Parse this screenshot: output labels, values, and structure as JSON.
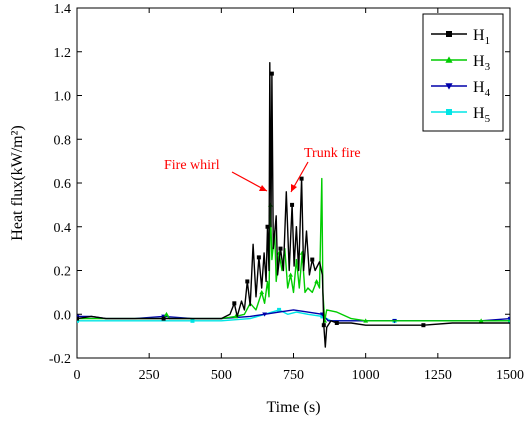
{
  "chart_data": {
    "type": "line",
    "xlabel": "Time (s)",
    "ylabel": "Heat flux(kW/m²)",
    "xlim": [
      0,
      1500
    ],
    "ylim": [
      -0.2,
      1.4
    ],
    "xticks": [
      0,
      250,
      500,
      750,
      1000,
      1250,
      1500
    ],
    "yticks": [
      -0.2,
      0.0,
      0.2,
      0.4,
      0.6,
      0.8,
      1.0,
      1.2,
      1.4
    ],
    "grid": false,
    "legend_position": "top-right",
    "series": [
      {
        "name": "H1",
        "color": "#000000",
        "marker": "square",
        "points": [
          [
            0,
            -0.02
          ],
          [
            50,
            -0.01
          ],
          [
            100,
            -0.02
          ],
          [
            200,
            -0.02
          ],
          [
            300,
            -0.02
          ],
          [
            400,
            -0.02
          ],
          [
            500,
            -0.02
          ],
          [
            530,
            0.0
          ],
          [
            545,
            0.05
          ],
          [
            555,
            -0.01
          ],
          [
            570,
            0.06
          ],
          [
            580,
            0.02
          ],
          [
            590,
            0.15
          ],
          [
            600,
            0.04
          ],
          [
            610,
            0.32
          ],
          [
            620,
            0.08
          ],
          [
            630,
            0.26
          ],
          [
            640,
            0.12
          ],
          [
            648,
            0.28
          ],
          [
            655,
            0.15
          ],
          [
            660,
            0.4
          ],
          [
            665,
            0.2
          ],
          [
            668,
            1.15
          ],
          [
            672,
            0.4
          ],
          [
            675,
            1.1
          ],
          [
            680,
            0.3
          ],
          [
            690,
            0.45
          ],
          [
            695,
            0.18
          ],
          [
            705,
            0.3
          ],
          [
            715,
            0.2
          ],
          [
            725,
            0.56
          ],
          [
            735,
            0.2
          ],
          [
            745,
            0.5
          ],
          [
            752,
            0.22
          ],
          [
            760,
            0.4
          ],
          [
            768,
            0.2
          ],
          [
            778,
            0.62
          ],
          [
            785,
            0.2
          ],
          [
            795,
            0.38
          ],
          [
            805,
            0.18
          ],
          [
            815,
            0.25
          ],
          [
            825,
            0.2
          ],
          [
            840,
            0.24
          ],
          [
            850,
            0.18
          ],
          [
            855,
            -0.05
          ],
          [
            860,
            -0.15
          ],
          [
            865,
            -0.06
          ],
          [
            880,
            -0.03
          ],
          [
            900,
            -0.04
          ],
          [
            950,
            -0.04
          ],
          [
            1000,
            -0.05
          ],
          [
            1100,
            -0.05
          ],
          [
            1200,
            -0.05
          ],
          [
            1300,
            -0.04
          ],
          [
            1400,
            -0.04
          ],
          [
            1500,
            -0.04
          ]
        ]
      },
      {
        "name": "H3",
        "color": "#00cc00",
        "marker": "triangle-up",
        "points": [
          [
            0,
            -0.02
          ],
          [
            100,
            -0.02
          ],
          [
            200,
            -0.02
          ],
          [
            300,
            -0.02
          ],
          [
            310,
            0.0
          ],
          [
            320,
            -0.02
          ],
          [
            400,
            -0.02
          ],
          [
            500,
            -0.02
          ],
          [
            550,
            -0.01
          ],
          [
            580,
            0.0
          ],
          [
            600,
            0.05
          ],
          [
            620,
            0.02
          ],
          [
            640,
            0.1
          ],
          [
            650,
            0.05
          ],
          [
            660,
            0.15
          ],
          [
            665,
            0.08
          ],
          [
            670,
            0.5
          ],
          [
            675,
            0.25
          ],
          [
            685,
            0.38
          ],
          [
            690,
            0.15
          ],
          [
            700,
            0.28
          ],
          [
            710,
            0.2
          ],
          [
            720,
            0.3
          ],
          [
            730,
            0.12
          ],
          [
            740,
            0.18
          ],
          [
            750,
            0.1
          ],
          [
            760,
            0.25
          ],
          [
            770,
            0.12
          ],
          [
            780,
            0.28
          ],
          [
            790,
            0.1
          ],
          [
            800,
            0.12
          ],
          [
            815,
            0.1
          ],
          [
            830,
            0.15
          ],
          [
            840,
            0.12
          ],
          [
            848,
            0.62
          ],
          [
            852,
            0.1
          ],
          [
            858,
            -0.03
          ],
          [
            865,
            0.02
          ],
          [
            900,
            0.01
          ],
          [
            950,
            -0.02
          ],
          [
            1000,
            -0.03
          ],
          [
            1100,
            -0.03
          ],
          [
            1200,
            -0.03
          ],
          [
            1300,
            -0.03
          ],
          [
            1400,
            -0.03
          ],
          [
            1500,
            -0.03
          ]
        ]
      },
      {
        "name": "H4",
        "color": "#0000aa",
        "marker": "triangle-down",
        "points": [
          [
            0,
            -0.01
          ],
          [
            50,
            -0.01
          ],
          [
            100,
            -0.02
          ],
          [
            200,
            -0.02
          ],
          [
            300,
            -0.01
          ],
          [
            400,
            -0.02
          ],
          [
            500,
            -0.02
          ],
          [
            600,
            -0.01
          ],
          [
            650,
            0.0
          ],
          [
            700,
            0.01
          ],
          [
            750,
            0.02
          ],
          [
            800,
            0.01
          ],
          [
            850,
            0.0
          ],
          [
            870,
            -0.03
          ],
          [
            900,
            -0.03
          ],
          [
            1000,
            -0.03
          ],
          [
            1100,
            -0.03
          ],
          [
            1200,
            -0.03
          ],
          [
            1300,
            -0.03
          ],
          [
            1400,
            -0.03
          ],
          [
            1500,
            -0.02
          ]
        ]
      },
      {
        "name": "H5",
        "color": "#00e5e5",
        "marker": "square",
        "points": [
          [
            0,
            -0.03
          ],
          [
            100,
            -0.03
          ],
          [
            200,
            -0.03
          ],
          [
            300,
            -0.03
          ],
          [
            400,
            -0.03
          ],
          [
            500,
            -0.03
          ],
          [
            600,
            -0.02
          ],
          [
            650,
            0.0
          ],
          [
            700,
            0.02
          ],
          [
            730,
            0.0
          ],
          [
            760,
            0.01
          ],
          [
            800,
            0.0
          ],
          [
            850,
            -0.01
          ],
          [
            880,
            -0.03
          ],
          [
            900,
            -0.03
          ],
          [
            1000,
            -0.03
          ],
          [
            1100,
            -0.03
          ],
          [
            1200,
            -0.03
          ],
          [
            1300,
            -0.03
          ],
          [
            1400,
            -0.03
          ],
          [
            1500,
            -0.03
          ]
        ]
      }
    ],
    "annotations": [
      {
        "text": "Fire whirl",
        "x": 668,
        "y": 0.57
      },
      {
        "text": "Trunk fire",
        "x": 725,
        "y": 0.55
      }
    ]
  }
}
